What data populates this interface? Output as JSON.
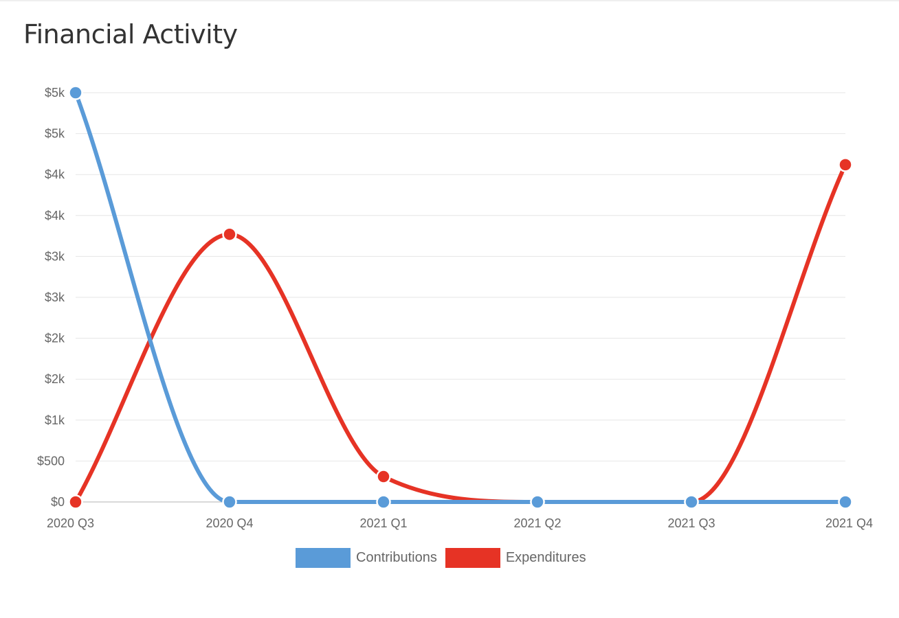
{
  "chart_data": {
    "type": "line",
    "title": "Financial Activity",
    "categories": [
      "2020 Q3",
      "2020 Q4",
      "2021 Q1",
      "2021 Q2",
      "2021 Q3",
      "2021 Q4"
    ],
    "y_tick_labels": [
      "$0",
      "$500",
      "$1k",
      "$2k",
      "$2k",
      "$3k",
      "$3k",
      "$4k",
      "$4k",
      "$5k",
      "$5k"
    ],
    "ylim": [
      0,
      5000
    ],
    "grid": true,
    "legend_position": "bottom",
    "series": [
      {
        "name": "Contributions",
        "color": "#5a9bd8",
        "values": [
          5000,
          0,
          0,
          0,
          0,
          0
        ]
      },
      {
        "name": "Expenditures",
        "color": "#e63325",
        "values": [
          0,
          3270,
          310,
          0,
          0,
          4120
        ]
      }
    ],
    "xlabel": "",
    "ylabel": ""
  }
}
